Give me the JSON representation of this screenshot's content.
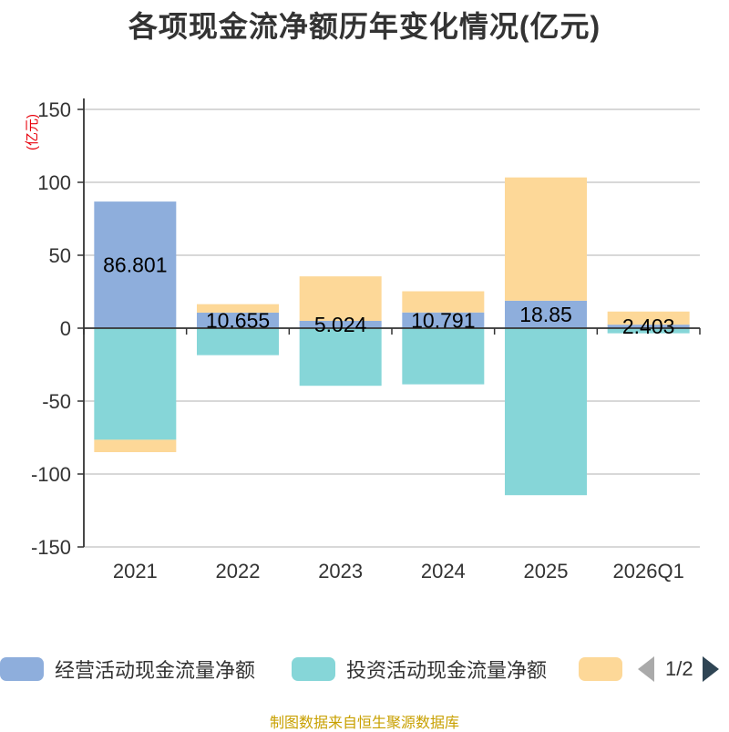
{
  "title": "各项现金流净额历年变化情况(亿元)",
  "source": "制图数据来自恒生聚源数据库",
  "legend_pager": "1/2",
  "colors": {
    "operating": "#8eaedc",
    "investing": "#86d6d8",
    "financing": "#fdd898",
    "axis": "#333333",
    "grid": "#cccccc",
    "unit": "#e8000b",
    "source": "#c8a000"
  },
  "chart_data": {
    "type": "bar",
    "stacked": true,
    "unit_label": "(亿元)",
    "categories": [
      "2021",
      "2022",
      "2023",
      "2024",
      "2025",
      "2026Q1"
    ],
    "ylim": [
      -150,
      150
    ],
    "yticks": [
      150,
      100,
      50,
      0,
      -50,
      -100,
      -150
    ],
    "series": [
      {
        "name": "经营活动现金流量净额",
        "color_key": "operating",
        "values": [
          86.801,
          10.655,
          5.024,
          10.791,
          18.85,
          2.403
        ]
      },
      {
        "name": "投资活动现金流量净额",
        "color_key": "investing",
        "values": [
          -76.5,
          -18.5,
          -39.5,
          -38.5,
          -114.5,
          -3.5
        ]
      },
      {
        "name": "",
        "color_key": "financing",
        "values": [
          -8.5,
          5.8,
          30.5,
          14.5,
          84.5,
          9.0
        ]
      }
    ],
    "data_labels": [
      "86.801",
      "10.655",
      "5.024",
      "10.791",
      "18.85",
      "2.403"
    ]
  }
}
